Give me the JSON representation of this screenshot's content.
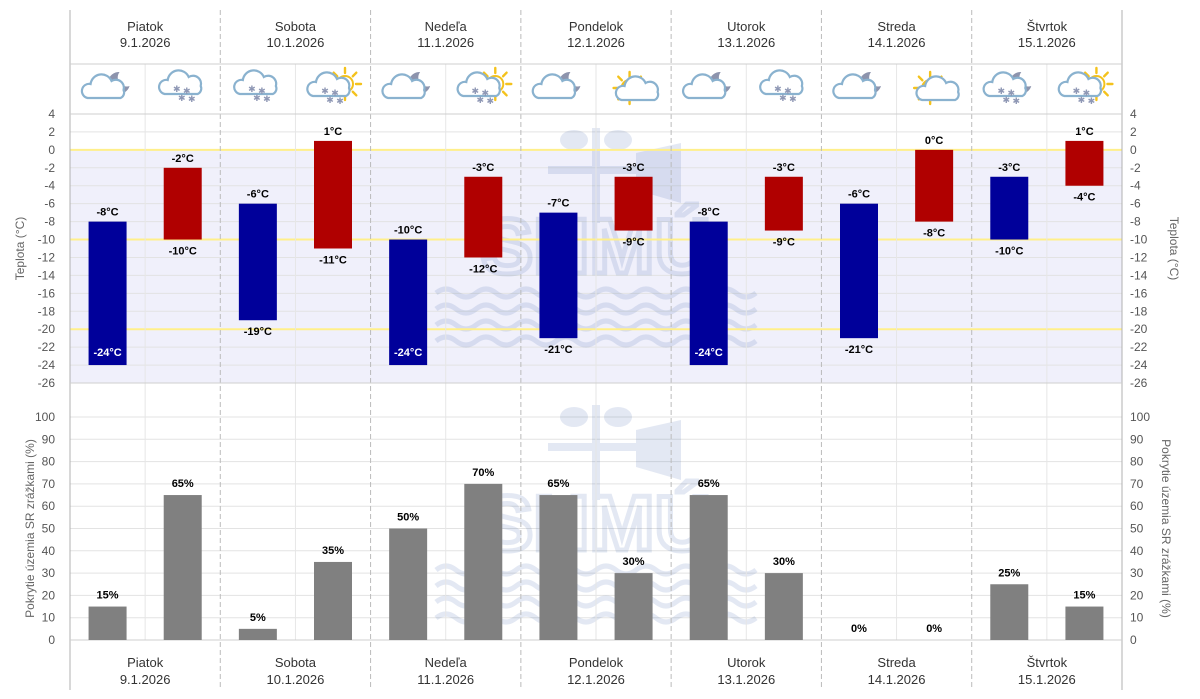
{
  "days": [
    {
      "name": "Piatok",
      "date": "9.1.2026",
      "icons": [
        "cloud-moon-icon",
        "snow-cloud-icon"
      ]
    },
    {
      "name": "Sobota",
      "date": "10.1.2026",
      "icons": [
        "snow-cloud-icon",
        "snow-cloud-sun-icon"
      ]
    },
    {
      "name": "Nedeľa",
      "date": "11.1.2026",
      "icons": [
        "cloud-moon-icon",
        "snow-cloud-sun-icon"
      ]
    },
    {
      "name": "Pondelok",
      "date": "12.1.2026",
      "icons": [
        "cloud-moon-icon",
        "partly-sunny-icon"
      ]
    },
    {
      "name": "Utorok",
      "date": "13.1.2026",
      "icons": [
        "cloud-moon-icon",
        "snow-cloud-icon"
      ]
    },
    {
      "name": "Streda",
      "date": "14.1.2026",
      "icons": [
        "cloud-moon-icon",
        "partly-sunny-icon"
      ]
    },
    {
      "name": "Štvrtok",
      "date": "15.1.2026",
      "icons": [
        "snow-cloud-moon-icon",
        "snow-cloud-sun-icon"
      ]
    }
  ],
  "watermark": "SHMÚ",
  "colors": {
    "night": "#00009a",
    "day": "#b00000",
    "precip": "#808080",
    "band": "#f0f0fb",
    "yellow": "#ffef8a",
    "axis": "#888888"
  },
  "chart_data": [
    {
      "type": "bar",
      "title": "",
      "ylabel": "Teplota (°C)",
      "ylabel_right": "Teplota (°C)",
      "ylim": [
        -26,
        4
      ],
      "yticks": [
        4,
        2,
        0,
        -2,
        -4,
        -6,
        -8,
        -10,
        -12,
        -14,
        -16,
        -18,
        -20,
        -22,
        -24,
        -26
      ],
      "highlight_lines": [
        0,
        -10,
        -20
      ],
      "series": [
        {
          "name": "night",
          "ranges": [
            [
              -24,
              -8
            ],
            [
              -19,
              -6
            ],
            [
              -24,
              -10
            ],
            [
              -21,
              -7
            ],
            [
              -24,
              -8
            ],
            [
              -21,
              -6
            ],
            [
              -10,
              -3
            ]
          ]
        },
        {
          "name": "day",
          "ranges": [
            [
              -10,
              -2
            ],
            [
              -11,
              1
            ],
            [
              -12,
              -3
            ],
            [
              -9,
              -3
            ],
            [
              -9,
              -3
            ],
            [
              -8,
              0
            ],
            [
              -4,
              1
            ]
          ]
        }
      ]
    },
    {
      "type": "bar",
      "title": "",
      "ylabel": "Pokrytie územia SR zrážkami (%)",
      "ylabel_right": "Pokrytie územia SR zrážkami (%)",
      "ylim": [
        0,
        100
      ],
      "yticks": [
        100,
        90,
        80,
        70,
        60,
        50,
        40,
        30,
        20,
        10,
        0
      ],
      "series": [
        {
          "name": "night",
          "values": [
            15,
            5,
            50,
            65,
            65,
            0,
            25
          ]
        },
        {
          "name": "day",
          "values": [
            65,
            35,
            70,
            30,
            30,
            0,
            15
          ]
        }
      ]
    }
  ]
}
